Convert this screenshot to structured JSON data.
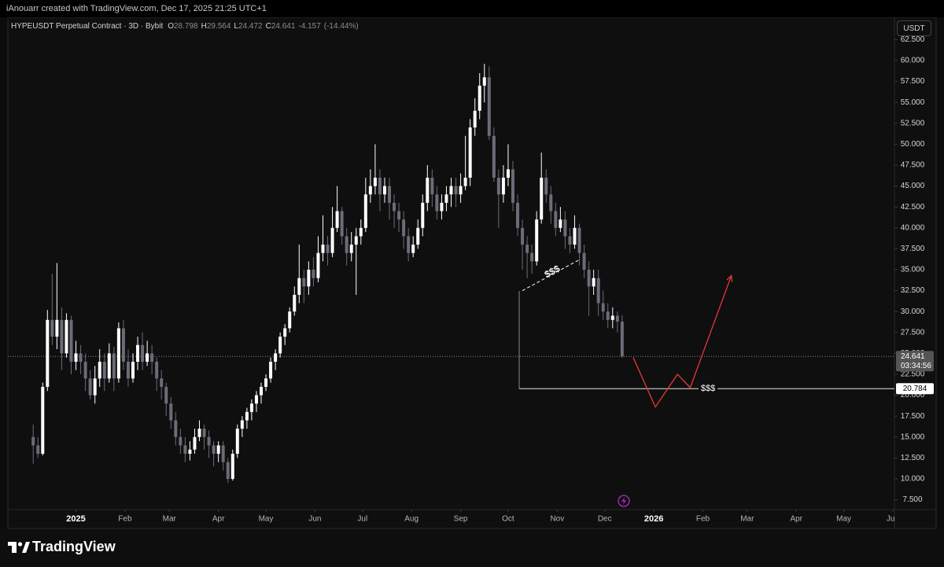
{
  "chart_data": {
    "type": "candlestick",
    "attribution": "iAnouarr created with TradingView.com, Dec 17, 2025 21:25 UTC+1",
    "title": "HYPEUSDT Perpetual Contract · 3D · Bybit",
    "legend_values": [
      {
        "key": "O",
        "value": 28.798
      },
      {
        "key": "H",
        "value": 29.564
      },
      {
        "key": "L",
        "value": 24.472
      },
      {
        "key": "C",
        "value": 24.641
      }
    ],
    "change": -4.157,
    "change_percent": {
      "value": -14.44,
      "label": "(-14.44%)"
    },
    "currency": "USDT",
    "watermark": "TradingView",
    "up_color": "#ffffff",
    "down_color": "#6a6d78",
    "grid": false,
    "last_price": 24.641,
    "countdown": "03:34:56",
    "xlim": [
      -43,
      517
    ],
    "ylim": [
      6.33,
      65.17
    ],
    "xticks": [
      {
        "value": 0,
        "label": "2025"
      },
      {
        "value": 31,
        "label": "Feb"
      },
      {
        "value": 59,
        "label": "Mar"
      },
      {
        "value": 90,
        "label": "Apr"
      },
      {
        "value": 120,
        "label": "May"
      },
      {
        "value": 151,
        "label": "Jun"
      },
      {
        "value": 181,
        "label": "Jul"
      },
      {
        "value": 212,
        "label": "Aug"
      },
      {
        "value": 243,
        "label": "Sep"
      },
      {
        "value": 273,
        "label": "Oct"
      },
      {
        "value": 304,
        "label": "Nov"
      },
      {
        "value": 334,
        "label": "Dec"
      },
      {
        "value": 365,
        "label": "2026"
      },
      {
        "value": 396,
        "label": "Feb"
      },
      {
        "value": 424,
        "label": "Mar"
      },
      {
        "value": 455,
        "label": "Apr"
      },
      {
        "value": 485,
        "label": "May"
      },
      {
        "value": 516,
        "label": "Jun"
      }
    ],
    "yticks": [
      {
        "value": 7.5,
        "label": "7.500"
      },
      {
        "value": 10,
        "label": "10.000"
      },
      {
        "value": 12.5,
        "label": "12.500"
      },
      {
        "value": 15,
        "label": "15.000"
      },
      {
        "value": 17.5,
        "label": "17.500"
      },
      {
        "value": 20,
        "label": "20.000"
      },
      {
        "value": 22.5,
        "label": "22.500"
      },
      {
        "value": 25,
        "label": "25.000"
      },
      {
        "value": 27.5,
        "label": "27.500"
      },
      {
        "value": 30,
        "label": "30.000"
      },
      {
        "value": 32.5,
        "label": "32.500"
      },
      {
        "value": 35,
        "label": "35.000"
      },
      {
        "value": 37.5,
        "label": "37.500"
      },
      {
        "value": 40,
        "label": "40.000"
      },
      {
        "value": 42.5,
        "label": "42.500"
      },
      {
        "value": 45,
        "label": "45.000"
      },
      {
        "value": 47.5,
        "label": "47.500"
      },
      {
        "value": 50,
        "label": "50.000"
      },
      {
        "value": 52.5,
        "label": "52.500"
      },
      {
        "value": 55,
        "label": "55.000"
      },
      {
        "value": 57.5,
        "label": "57.500"
      },
      {
        "value": 60,
        "label": "60.000"
      },
      {
        "value": 62.5,
        "label": "62.500"
      }
    ],
    "x": [
      -27,
      -24,
      -21,
      -18,
      -15,
      -12,
      -9,
      -6,
      -3,
      0,
      3,
      6,
      9,
      12,
      15,
      18,
      21,
      24,
      27,
      30,
      33,
      36,
      39,
      42,
      45,
      48,
      51,
      54,
      57,
      60,
      63,
      66,
      69,
      72,
      75,
      78,
      81,
      84,
      87,
      90,
      93,
      96,
      99,
      102,
      105,
      108,
      111,
      114,
      117,
      120,
      123,
      126,
      129,
      132,
      135,
      138,
      141,
      144,
      147,
      150,
      153,
      156,
      159,
      162,
      165,
      168,
      171,
      174,
      177,
      180,
      183,
      186,
      189,
      192,
      195,
      198,
      201,
      204,
      207,
      210,
      213,
      216,
      219,
      222,
      225,
      228,
      231,
      234,
      237,
      240,
      243,
      246,
      249,
      252,
      255,
      258,
      261,
      264,
      267,
      270,
      273,
      276,
      279,
      282,
      285,
      288,
      291,
      294,
      297,
      300,
      303,
      306,
      309,
      312,
      315,
      318,
      321,
      324,
      327,
      330,
      333,
      336,
      339,
      342,
      345
    ],
    "ohlc": [
      [
        15,
        16.5,
        11.8,
        14
      ],
      [
        14,
        15,
        12.5,
        13
      ],
      [
        13,
        21.5,
        12.8,
        21
      ],
      [
        21,
        30.2,
        20.5,
        29
      ],
      [
        29,
        34.5,
        26,
        27
      ],
      [
        27,
        35.8,
        25.5,
        29
      ],
      [
        29,
        30.5,
        23,
        25
      ],
      [
        25,
        29.8,
        24.5,
        29
      ],
      [
        29,
        29.5,
        22.5,
        24
      ],
      [
        24,
        26.5,
        23,
        25
      ],
      [
        25,
        26,
        22.5,
        24
      ],
      [
        24,
        25,
        20.5,
        22
      ],
      [
        22,
        23,
        19.5,
        20
      ],
      [
        20,
        23.5,
        19,
        22
      ],
      [
        22,
        25.5,
        21,
        24
      ],
      [
        24,
        25,
        20.5,
        22
      ],
      [
        22,
        26.2,
        21.5,
        25
      ],
      [
        25,
        25.8,
        20.5,
        22
      ],
      [
        22,
        28.7,
        21.5,
        28
      ],
      [
        28,
        29,
        23,
        24
      ],
      [
        24,
        25.5,
        21,
        22
      ],
      [
        22,
        25,
        21.5,
        24
      ],
      [
        24,
        27,
        23,
        26
      ],
      [
        26,
        27.5,
        23,
        24
      ],
      [
        24,
        26.5,
        23.5,
        25
      ],
      [
        25,
        26,
        22.5,
        24
      ],
      [
        24,
        24.5,
        20.5,
        22
      ],
      [
        22,
        23,
        19.5,
        21
      ],
      [
        21,
        21.5,
        17.5,
        19
      ],
      [
        19,
        19.8,
        16,
        17
      ],
      [
        17,
        18,
        14,
        15
      ],
      [
        15,
        16,
        13,
        14
      ],
      [
        14,
        15,
        12,
        13
      ],
      [
        13,
        14.5,
        12.2,
        13.5
      ],
      [
        13.5,
        16,
        13,
        15
      ],
      [
        15,
        17,
        14.5,
        16
      ],
      [
        16,
        16.5,
        13.5,
        15
      ],
      [
        15,
        15.8,
        12.5,
        14
      ],
      [
        14,
        14.5,
        11.5,
        13
      ],
      [
        13,
        14.5,
        12,
        14
      ],
      [
        14,
        14.5,
        11,
        12
      ],
      [
        12,
        12.5,
        9.5,
        10
      ],
      [
        10,
        13.5,
        9.8,
        13
      ],
      [
        13,
        16.5,
        12.5,
        16
      ],
      [
        16,
        17.5,
        15,
        17
      ],
      [
        17,
        18.5,
        16,
        18
      ],
      [
        18,
        19.5,
        17,
        19
      ],
      [
        19,
        20.5,
        18,
        20
      ],
      [
        20,
        21.5,
        19,
        21
      ],
      [
        21,
        22.5,
        20.5,
        22
      ],
      [
        22,
        24.5,
        21.5,
        24
      ],
      [
        24,
        25.5,
        23,
        25
      ],
      [
        25,
        27.5,
        24.5,
        27
      ],
      [
        27,
        28.5,
        26,
        28
      ],
      [
        28,
        30.5,
        27.5,
        30
      ],
      [
        30,
        33,
        29.5,
        32
      ],
      [
        32,
        38,
        31,
        34
      ],
      [
        34,
        35,
        31,
        33
      ],
      [
        33,
        36,
        32,
        35
      ],
      [
        35,
        36.5,
        33,
        34
      ],
      [
        34,
        39,
        33.5,
        37
      ],
      [
        37,
        41.5,
        36,
        38
      ],
      [
        38,
        39,
        35.5,
        37
      ],
      [
        37,
        42.5,
        36.5,
        40
      ],
      [
        40,
        45,
        39.5,
        42
      ],
      [
        42,
        42.5,
        38,
        39
      ],
      [
        39,
        40,
        35.5,
        37
      ],
      [
        37,
        39.5,
        36,
        38
      ],
      [
        38,
        40,
        32,
        39
      ],
      [
        39,
        41,
        38,
        40
      ],
      [
        40,
        46,
        39.5,
        44
      ],
      [
        44,
        47,
        43,
        45
      ],
      [
        45,
        50,
        44,
        46
      ],
      [
        46,
        47,
        42,
        44
      ],
      [
        44,
        46,
        43,
        45
      ],
      [
        45,
        46,
        41,
        43
      ],
      [
        43,
        44,
        40,
        42
      ],
      [
        42,
        43,
        39.5,
        41
      ],
      [
        41,
        42,
        37.5,
        39
      ],
      [
        39,
        40,
        36,
        37
      ],
      [
        37,
        39,
        36.5,
        38
      ],
      [
        38,
        41,
        37.5,
        40
      ],
      [
        40,
        44,
        39,
        43
      ],
      [
        43,
        47.5,
        42,
        46
      ],
      [
        46,
        47,
        42.5,
        44
      ],
      [
        44,
        45,
        41,
        42
      ],
      [
        42,
        44,
        41,
        43
      ],
      [
        43,
        45,
        42,
        44
      ],
      [
        44,
        46,
        42.5,
        45
      ],
      [
        45,
        46,
        42.5,
        44
      ],
      [
        44,
        46.5,
        43,
        45
      ],
      [
        45,
        51,
        44.5,
        46
      ],
      [
        46,
        53,
        45,
        52
      ],
      [
        52,
        55.5,
        51,
        54
      ],
      [
        54,
        58.5,
        53,
        57
      ],
      [
        57,
        59.6,
        55,
        58
      ],
      [
        58,
        59.3,
        50.5,
        51
      ],
      [
        51,
        52,
        45.5,
        46
      ],
      [
        46,
        47,
        40,
        44
      ],
      [
        44,
        47.5,
        43,
        46
      ],
      [
        46,
        50,
        45,
        47
      ],
      [
        47,
        48,
        42,
        43
      ],
      [
        43,
        44,
        39,
        40
      ],
      [
        40,
        41,
        35,
        38
      ],
      [
        38,
        39,
        34,
        37
      ],
      [
        37,
        38,
        34.5,
        36
      ],
      [
        36,
        42,
        35.5,
        41
      ],
      [
        41,
        49,
        40.5,
        46
      ],
      [
        46,
        47,
        43,
        44
      ],
      [
        44,
        45,
        40.5,
        42
      ],
      [
        42,
        43,
        39,
        40
      ],
      [
        40,
        42.5,
        39.5,
        41
      ],
      [
        41,
        42,
        37.5,
        39
      ],
      [
        39,
        40,
        37,
        38
      ],
      [
        38,
        41.5,
        37.5,
        40
      ],
      [
        40,
        40.5,
        35.5,
        37
      ],
      [
        37,
        38,
        34,
        35
      ],
      [
        35,
        36,
        29.5,
        33
      ],
      [
        33,
        35,
        32,
        34
      ],
      [
        34,
        35,
        29.5,
        31
      ],
      [
        31,
        32.5,
        29,
        30
      ],
      [
        30,
        31,
        28,
        29
      ],
      [
        29,
        30.5,
        28,
        29.5
      ],
      [
        29.5,
        30,
        27.5,
        28.798
      ],
      [
        28.798,
        29.564,
        24.472,
        24.641
      ]
    ],
    "annotations": [
      {
        "x": [
          280,
          280
        ],
        "values": [
          20.784,
          32.46
        ],
        "color": "#8a8a8a"
      },
      {
        "x": [
          280,
          517
        ],
        "values": [
          20.784,
          20.784
        ],
        "color": "#e6e6e6",
        "label": "$$$"
      },
      {
        "x": [
          282,
          318
        ],
        "values": [
          32.5,
          36.2
        ],
        "color": "#ffffff",
        "dashed": true,
        "label": "$$$"
      },
      {
        "x": [
          352,
          366,
          380,
          388,
          414
        ],
        "values": [
          24.5,
          18.6,
          22.5,
          20.9,
          34.3
        ],
        "color": "#e53935",
        "arrow": true
      }
    ]
  }
}
